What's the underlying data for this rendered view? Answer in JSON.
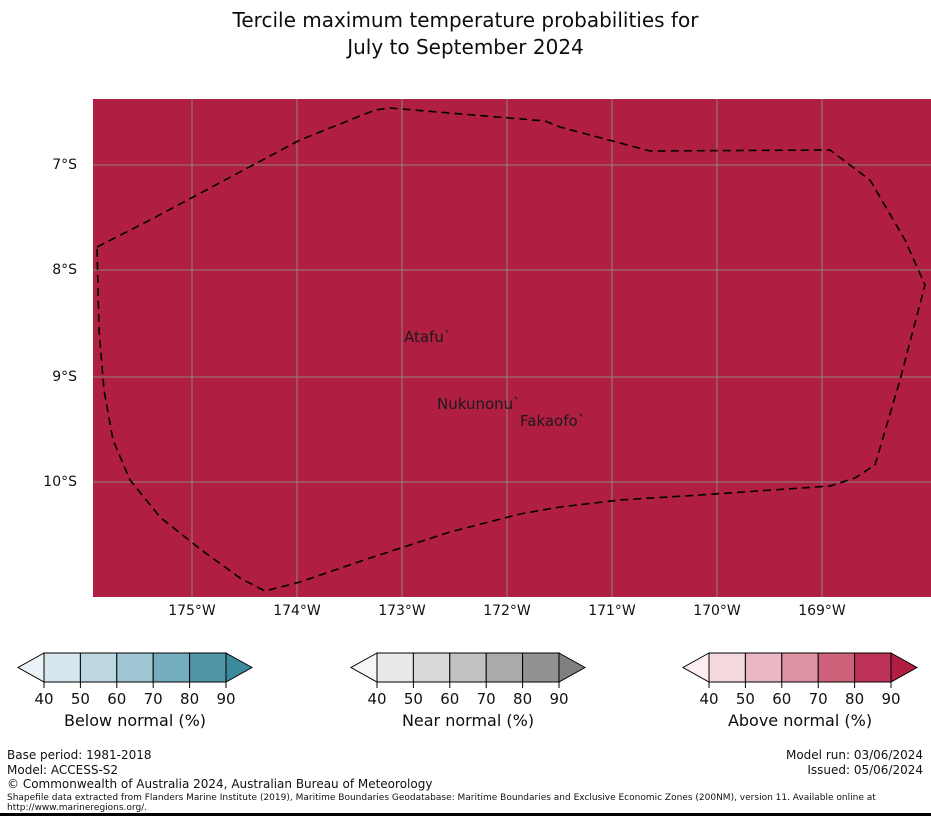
{
  "title": {
    "line1": "Tercile maximum temperature probabilities for",
    "line2": "July to September 2024"
  },
  "map": {
    "fill_color": "#b01f42",
    "lat_ticks": [
      "7°S",
      "8°S",
      "9°S",
      "10°S"
    ],
    "lon_ticks": [
      "175°W",
      "174°W",
      "173°W",
      "172°W",
      "171°W",
      "170°W",
      "169°W"
    ],
    "places": [
      "Atafu`",
      "Nukunonu`",
      "Fakaofo`"
    ]
  },
  "legends": [
    {
      "title": "Below normal (%)",
      "ticks": [
        "40",
        "50",
        "60",
        "70",
        "80",
        "90"
      ],
      "colors": [
        "#eaf2f5",
        "#d7e6ec",
        "#bdd7e0",
        "#9dc5d2",
        "#74aebe",
        "#4f96a9",
        "#3b8a9d"
      ]
    },
    {
      "title": "Near normal (%)",
      "ticks": [
        "40",
        "50",
        "60",
        "70",
        "80",
        "90"
      ],
      "colors": [
        "#f6f6f6",
        "#e9e9e9",
        "#d9d9d9",
        "#c2c2c2",
        "#aaaaaa",
        "#929292",
        "#808080"
      ]
    },
    {
      "title": "Above normal (%)",
      "ticks": [
        "40",
        "50",
        "60",
        "70",
        "80",
        "90"
      ],
      "colors": [
        "#faeef1",
        "#f3d8de",
        "#eab8c3",
        "#dd93a3",
        "#cd6179",
        "#bd3256",
        "#b01f42"
      ]
    }
  ],
  "footer": {
    "base_period": "Base period: 1981-2018",
    "model": "Model: ACCESS-S2",
    "model_run": "Model run: 03/06/2024",
    "issued": "Issued: 05/06/2024",
    "copyright": "© Commonwealth of Australia 2024, Australian Bureau of Meteorology",
    "shapefile_line1": "Shapefile data extracted from Flanders Marine Institute (2019), Maritime Boundaries Geodatabase: Maritime Boundaries and Exclusive Economic Zones (200NM), version 11. Available online at",
    "shapefile_line2": "http://www.marineregions.org/."
  }
}
